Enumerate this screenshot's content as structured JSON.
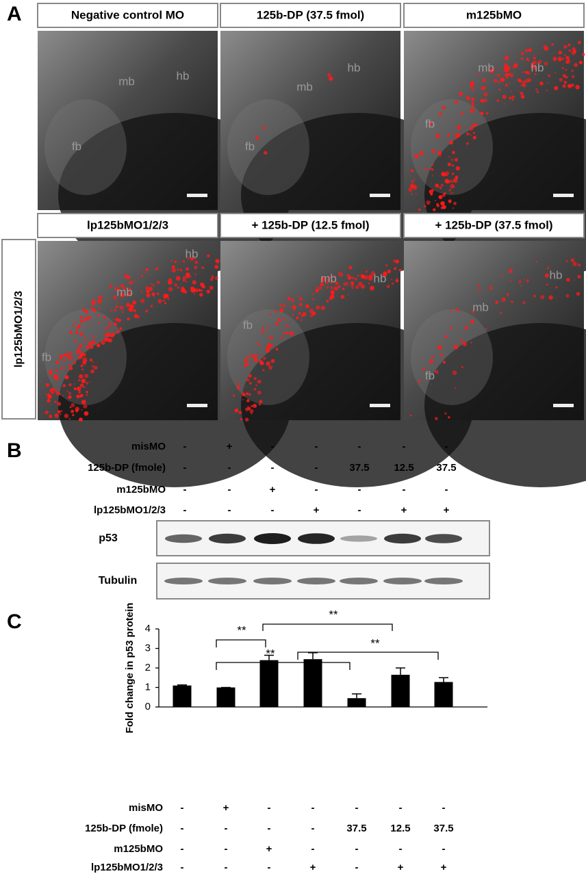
{
  "panel_a": {
    "label": "A",
    "headers": [
      "Negative control MO",
      "125b-DP (37.5 fmol)",
      "m125bMO",
      "lp125bMO1/2/3",
      "+ 125b-DP (12.5 fmol)",
      "+ 125b-DP (37.5 fmol)"
    ],
    "side_label": "lp125bMO1/2/3",
    "images": [
      {
        "labels": [
          "mb",
          "hb",
          "fb"
        ]
      },
      {
        "labels": [
          "mb",
          "hb",
          "fb"
        ]
      },
      {
        "labels": [
          "mb",
          "hb",
          "fb"
        ]
      },
      {
        "labels": [
          "mb",
          "hb",
          "fb"
        ]
      },
      {
        "labels": [
          "mb",
          "hb",
          "fb"
        ]
      },
      {
        "labels": [
          "mb",
          "hb",
          "fb"
        ]
      }
    ]
  },
  "panel_b": {
    "label": "B",
    "rows": [
      {
        "label": "misMO",
        "cells": [
          "-",
          "+",
          "-",
          "-",
          "-",
          "-",
          "-"
        ]
      },
      {
        "label": "125b-DP (fmole)",
        "cells": [
          "-",
          "-",
          "-",
          "-",
          "37.5",
          "12.5",
          "37.5"
        ]
      },
      {
        "label": "m125bMO",
        "cells": [
          "-",
          "-",
          "+",
          "-",
          "-",
          "-",
          "-"
        ]
      },
      {
        "label": "lp125bMO1/2/3",
        "cells": [
          "-",
          "-",
          "-",
          "+",
          "-",
          "+",
          "+"
        ]
      }
    ],
    "blots": [
      "p53",
      "Tubulin"
    ]
  },
  "panel_c": {
    "label": "C",
    "rows": [
      {
        "label": "misMO",
        "cells": [
          "-",
          "+",
          "-",
          "-",
          "-",
          "-",
          "-"
        ]
      },
      {
        "label": "125b-DP (fmole)",
        "cells": [
          "-",
          "-",
          "-",
          "-",
          "37.5",
          "12.5",
          "37.5"
        ]
      },
      {
        "label": "m125bMO",
        "cells": [
          "-",
          "-",
          "+",
          "-",
          "-",
          "-",
          "-"
        ]
      },
      {
        "label": "lp125bMO1/2/3",
        "cells": [
          "-",
          "-",
          "-",
          "+",
          "-",
          "+",
          "+"
        ]
      }
    ]
  },
  "chart_data": {
    "type": "bar",
    "y_label": "Fold change in p53 protein",
    "categories": [
      null,
      null,
      null,
      null,
      null,
      null,
      null
    ],
    "values": [
      1.1,
      1.0,
      2.4,
      2.45,
      0.45,
      1.65,
      1.28
    ],
    "errors": [
      0.03,
      0,
      0.25,
      0.33,
      0.22,
      0.35,
      0.22
    ],
    "color": "#000000",
    "ylim": [
      0,
      4
    ],
    "yticks": [
      0,
      1,
      2,
      3,
      4
    ],
    "annotations": [
      "**",
      "**",
      "**",
      "**"
    ]
  }
}
